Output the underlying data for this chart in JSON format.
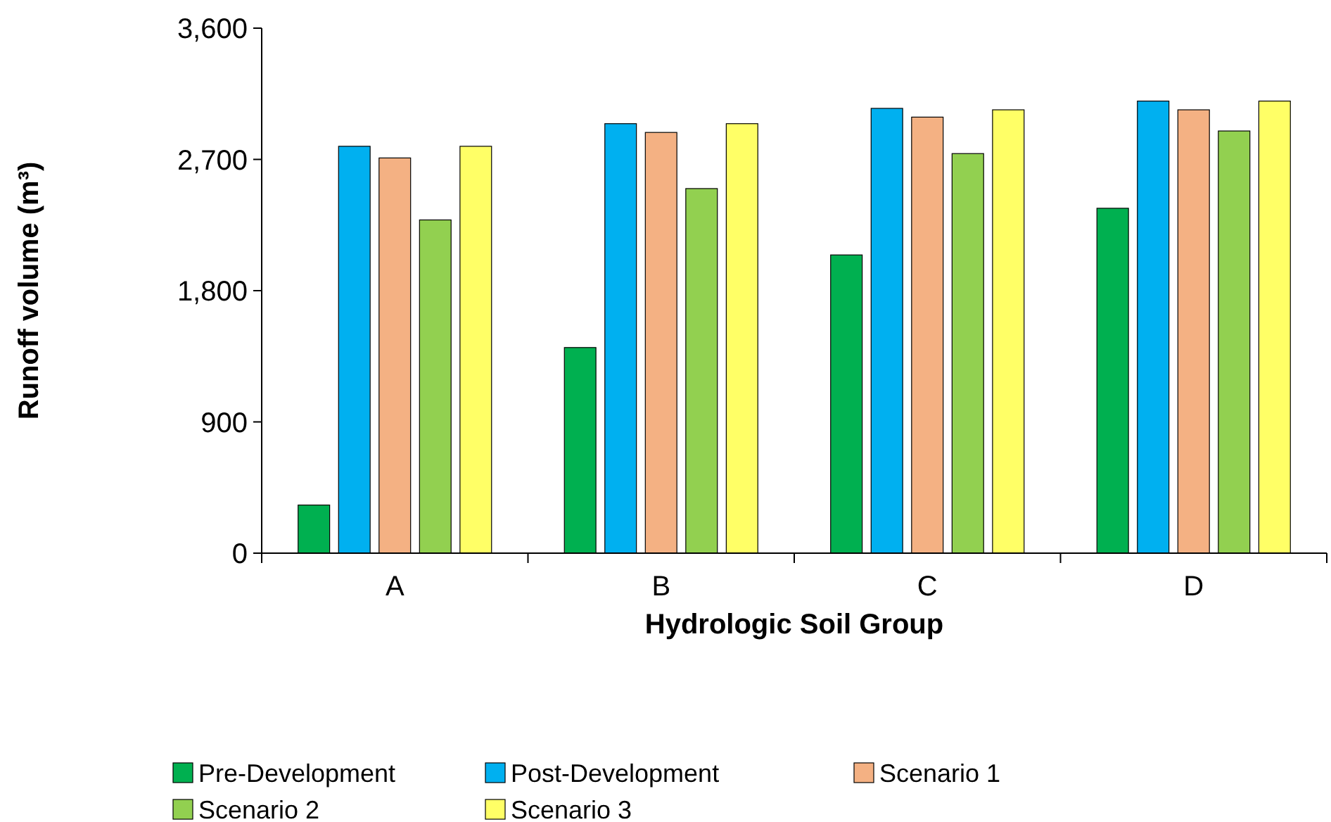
{
  "chart_data": {
    "type": "bar",
    "xlabel": "Hydrologic Soil Group",
    "ylabel": "Runoff volume (m³)",
    "categories": [
      "A",
      "B",
      "C",
      "D"
    ],
    "series": [
      {
        "name": "Pre-Development",
        "color": "#00b050",
        "values": [
          330,
          1410,
          2045,
          2365
        ]
      },
      {
        "name": "Post-Development",
        "color": "#00b0f0",
        "values": [
          2790,
          2945,
          3050,
          3100
        ]
      },
      {
        "name": "Scenario 1",
        "color": "#f4b183",
        "values": [
          2710,
          2885,
          2990,
          3040
        ]
      },
      {
        "name": "Scenario 2",
        "color": "#92d050",
        "values": [
          2285,
          2500,
          2740,
          2895
        ]
      },
      {
        "name": "Scenario 3",
        "color": "#ffff66",
        "values": [
          2790,
          2945,
          3040,
          3100
        ]
      }
    ],
    "ylim": [
      0,
      3600
    ],
    "yticks": [
      {
        "value": 0,
        "label": "0"
      },
      {
        "value": 900,
        "label": "900"
      },
      {
        "value": 1800,
        "label": "1,800"
      },
      {
        "value": 2700,
        "label": "2,700"
      },
      {
        "value": 3600,
        "label": "3,600"
      }
    ],
    "grid": false,
    "legend": "bottom"
  }
}
